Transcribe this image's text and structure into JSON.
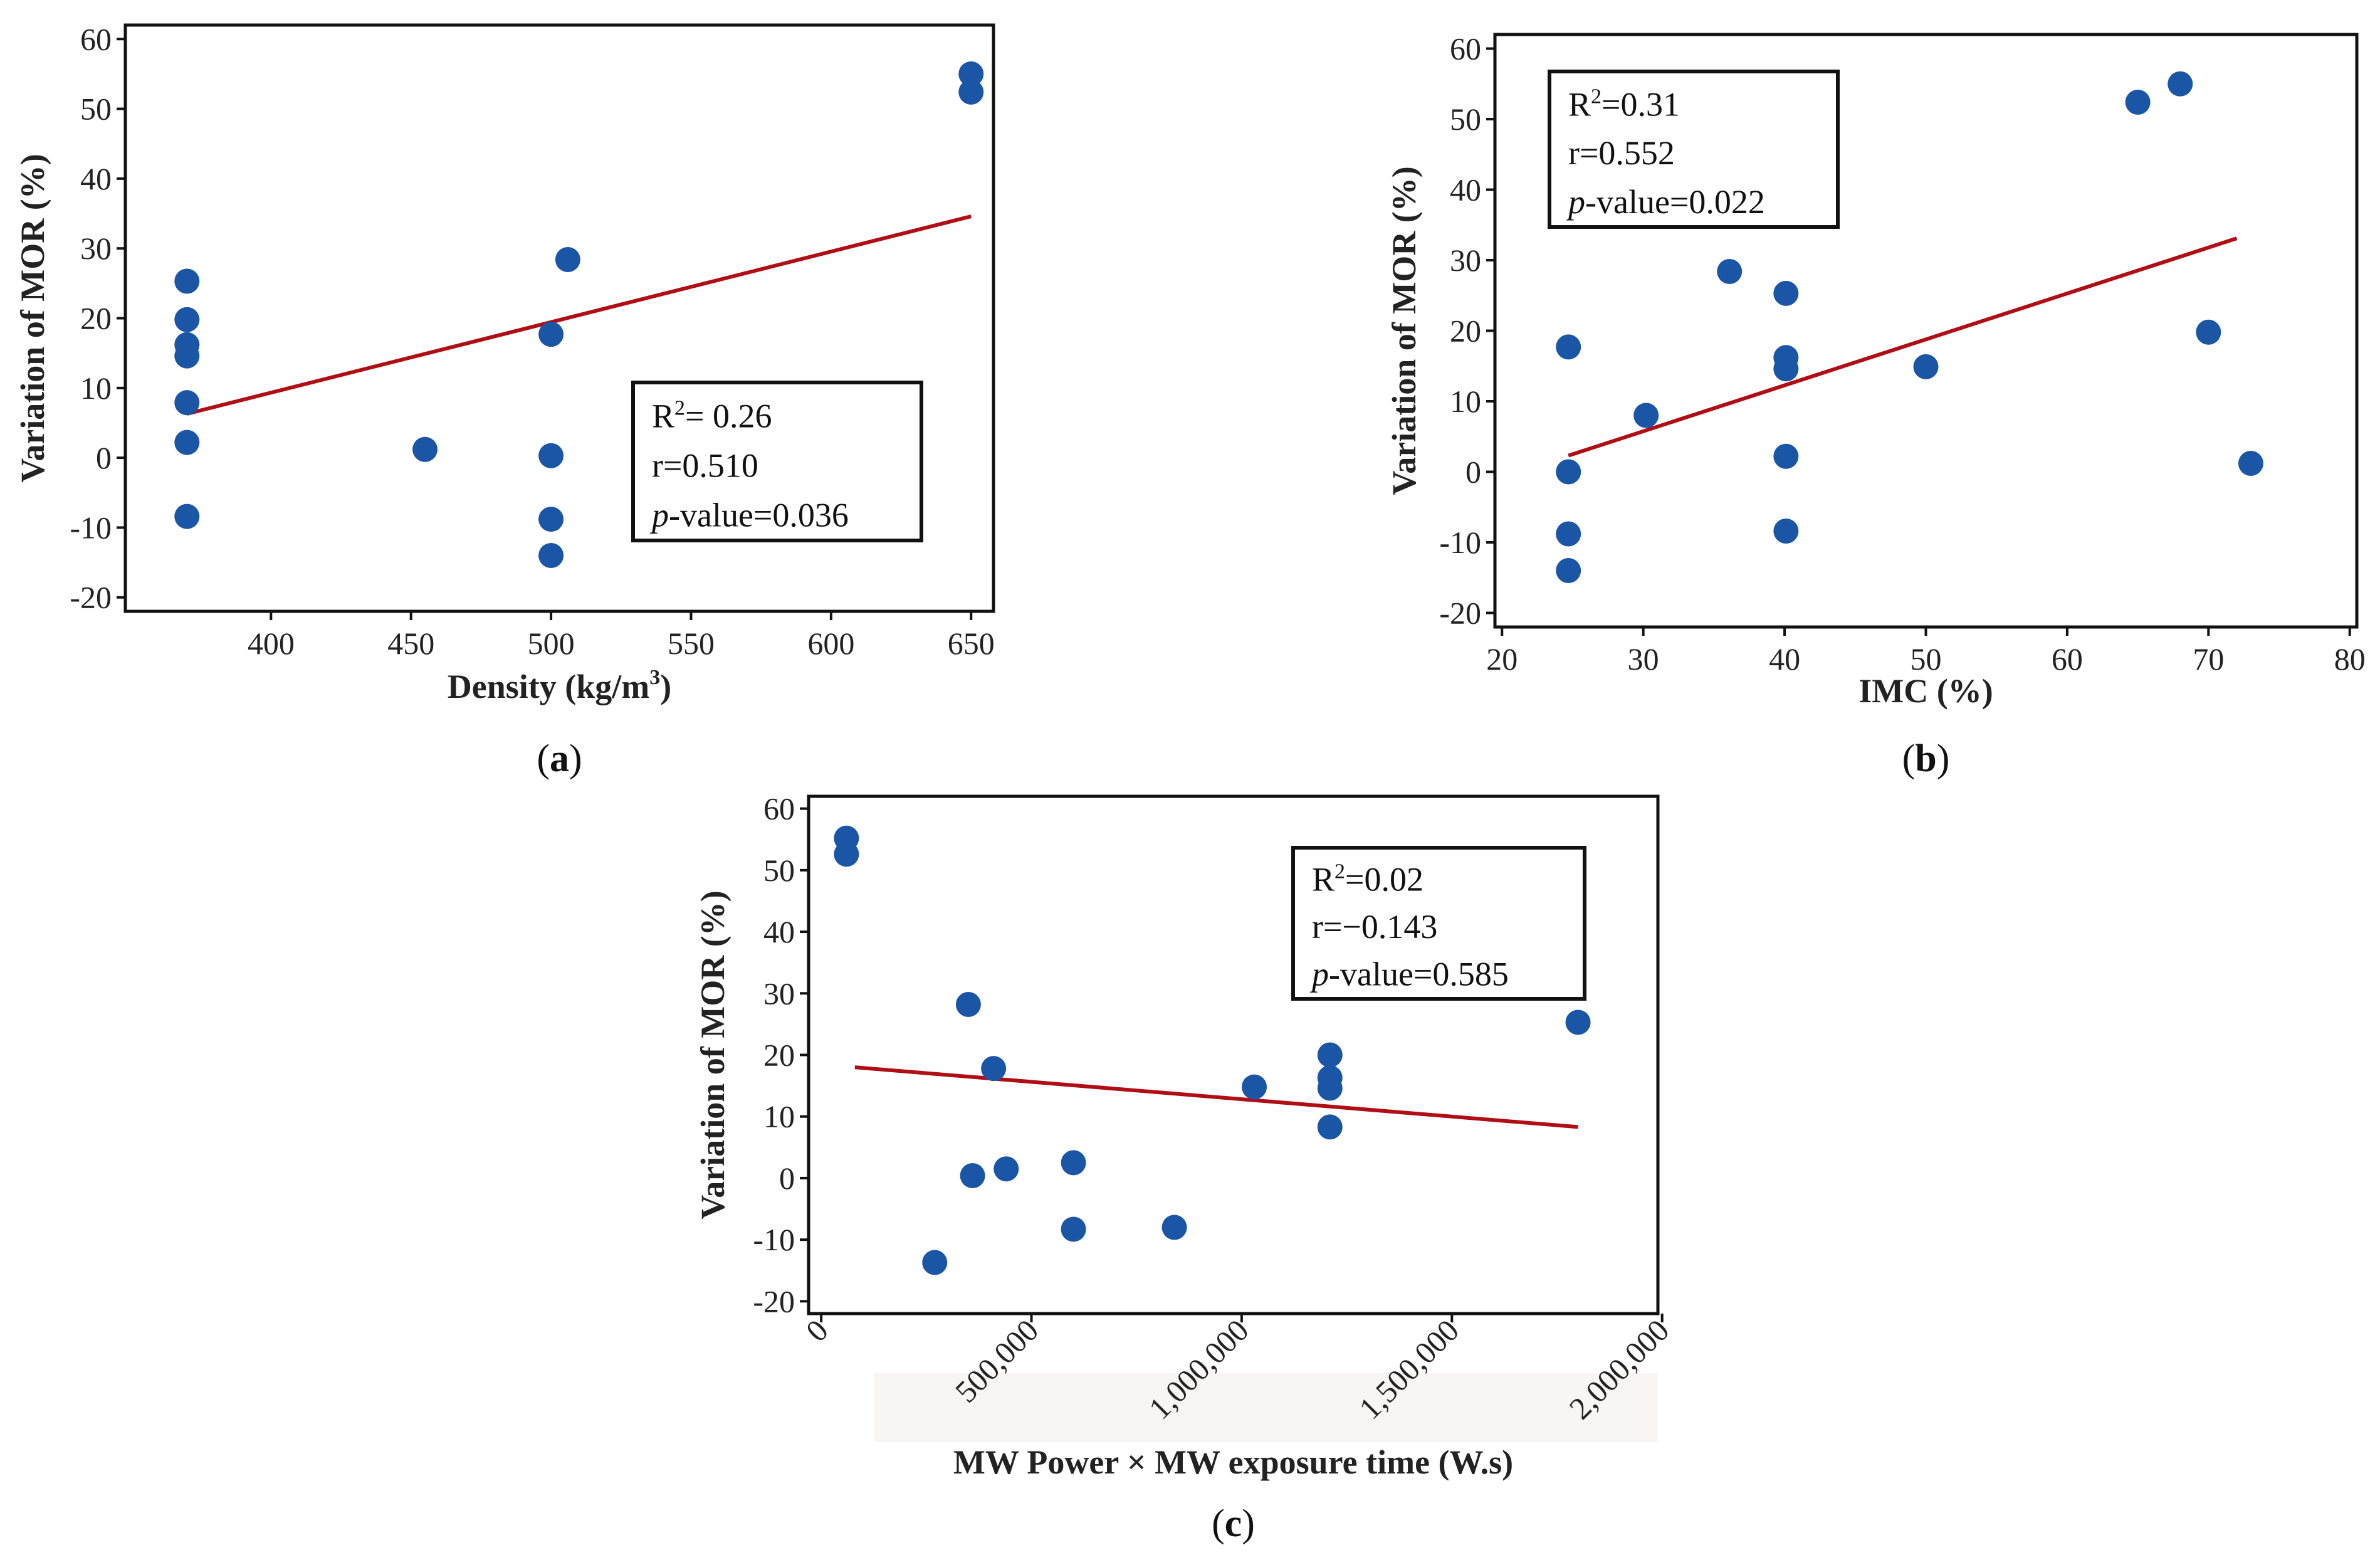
{
  "colors": {
    "point": "#1a56a5",
    "fit": "#b00d14",
    "axis": "#111111",
    "frame": "#111111"
  },
  "chart_data": [
    {
      "type": "scatter",
      "panel_label": {
        "open": "(",
        "letter": "a",
        "close": ")"
      },
      "xlabel": "Density (kg/m",
      "xlabel_sup": "3",
      "xlabel_end": ")",
      "ylabel": "Variation of MOR (%)",
      "xlim": [
        348,
        658
      ],
      "ylim": [
        -22,
        62
      ],
      "xticks": [
        400,
        450,
        500,
        550,
        600,
        650
      ],
      "xtick_labels": [
        "400",
        "450",
        "500",
        "550",
        "600",
        "650"
      ],
      "yticks": [
        -20,
        -10,
        0,
        10,
        20,
        30,
        40,
        50,
        60
      ],
      "ytick_labels": [
        "-20",
        "-10",
        "0",
        "10",
        "20",
        "30",
        "40",
        "50",
        "60"
      ],
      "points": [
        {
          "x": 370,
          "y": 25.3
        },
        {
          "x": 370,
          "y": 19.8
        },
        {
          "x": 370,
          "y": 16.2
        },
        {
          "x": 370,
          "y": 14.6
        },
        {
          "x": 370,
          "y": 7.9
        },
        {
          "x": 370,
          "y": 2.2
        },
        {
          "x": 370,
          "y": -8.4
        },
        {
          "x": 455,
          "y": 1.2
        },
        {
          "x": 500,
          "y": 17.7
        },
        {
          "x": 500,
          "y": 0.3
        },
        {
          "x": 500,
          "y": -8.8
        },
        {
          "x": 500,
          "y": -14
        },
        {
          "x": 506,
          "y": 28.4
        },
        {
          "x": 650,
          "y": 55
        },
        {
          "x": 650,
          "y": 52.4
        }
      ],
      "fit": {
        "x": [
          370,
          650
        ],
        "y": [
          6.3,
          34.6
        ]
      },
      "stats": {
        "r2_label": "R",
        "r2_sup": "2",
        "r2_value": "= 0.26",
        "r_text": "r=0.510",
        "p_label": "p",
        "p_value": "-value=0.036"
      }
    },
    {
      "type": "scatter",
      "panel_label": {
        "open": "(",
        "letter": "b",
        "close": ")"
      },
      "xlabel": "IMC (%)",
      "ylabel": "Variation of MOR (%)",
      "xlim": [
        19.5,
        80.5
      ],
      "ylim": [
        -22,
        62
      ],
      "xticks": [
        20,
        30,
        40,
        50,
        60,
        70,
        80
      ],
      "xtick_labels": [
        "20",
        "30",
        "40",
        "50",
        "60",
        "70",
        "80"
      ],
      "yticks": [
        -20,
        -10,
        0,
        10,
        20,
        30,
        40,
        50,
        60
      ],
      "ytick_labels": [
        "-20",
        "-10",
        "0",
        "10",
        "20",
        "30",
        "40",
        "50",
        "60"
      ],
      "points": [
        {
          "x": 24.7,
          "y": 17.7
        },
        {
          "x": 24.7,
          "y": 0
        },
        {
          "x": 24.7,
          "y": -8.8
        },
        {
          "x": 24.7,
          "y": -14
        },
        {
          "x": 30.2,
          "y": 8
        },
        {
          "x": 36.1,
          "y": 28.4
        },
        {
          "x": 40.1,
          "y": 25.3
        },
        {
          "x": 40.1,
          "y": 16.2
        },
        {
          "x": 40.1,
          "y": 14.6
        },
        {
          "x": 40.1,
          "y": 2.2
        },
        {
          "x": 40.1,
          "y": -8.4
        },
        {
          "x": 50,
          "y": 14.9
        },
        {
          "x": 65,
          "y": 52.4
        },
        {
          "x": 68,
          "y": 55
        },
        {
          "x": 70,
          "y": 19.8
        },
        {
          "x": 73,
          "y": 1.2
        }
      ],
      "fit": {
        "x": [
          24.7,
          72
        ],
        "y": [
          2.3,
          33.1
        ]
      },
      "stats": {
        "r2_label": "R",
        "r2_sup": "2",
        "r2_value": "=0.31",
        "r_text": "r=0.552",
        "p_label": "p",
        "p_value": "-value=0.022"
      }
    },
    {
      "type": "scatter",
      "panel_label": {
        "open": "(",
        "letter": "c",
        "close": ")"
      },
      "xlabel": "MW Power × MW exposure time (W.s)",
      "ylabel": "Variation of MOR (%)",
      "xlim": [
        -30000,
        1990000
      ],
      "ylim": [
        -22,
        62
      ],
      "xticks": [
        0,
        500000,
        1000000,
        1500000,
        2000000
      ],
      "xtick_labels": [
        "0",
        "500,000",
        "1,000,000",
        "1,500,000",
        "2,000,000"
      ],
      "yticks": [
        -20,
        -10,
        0,
        10,
        20,
        30,
        40,
        50,
        60
      ],
      "ytick_labels": [
        "-20",
        "-10",
        "0",
        "10",
        "20",
        "30",
        "40",
        "50",
        "60"
      ],
      "points": [
        {
          "x": 60000,
          "y": 55.2
        },
        {
          "x": 60000,
          "y": 52.6
        },
        {
          "x": 270000,
          "y": -13.7
        },
        {
          "x": 350000,
          "y": 28.2
        },
        {
          "x": 360000,
          "y": 0.4
        },
        {
          "x": 410000,
          "y": 17.8
        },
        {
          "x": 440000,
          "y": 1.5
        },
        {
          "x": 600000,
          "y": 2.5
        },
        {
          "x": 600000,
          "y": -8.3
        },
        {
          "x": 840000,
          "y": -8
        },
        {
          "x": 1030000,
          "y": 14.8
        },
        {
          "x": 1210000,
          "y": 20
        },
        {
          "x": 1210000,
          "y": 16.3
        },
        {
          "x": 1210000,
          "y": 14.6
        },
        {
          "x": 1210000,
          "y": 8.3
        },
        {
          "x": 1800000,
          "y": 25.3
        }
      ],
      "fit": {
        "x": [
          80000,
          1800000
        ],
        "y": [
          18,
          8.3
        ]
      },
      "stats": {
        "r2_label": "R",
        "r2_sup": "2",
        "r2_value": "=0.02",
        "r_text": "r=−0.143",
        "p_label": "p",
        "p_value": "-value=0.585"
      }
    }
  ]
}
